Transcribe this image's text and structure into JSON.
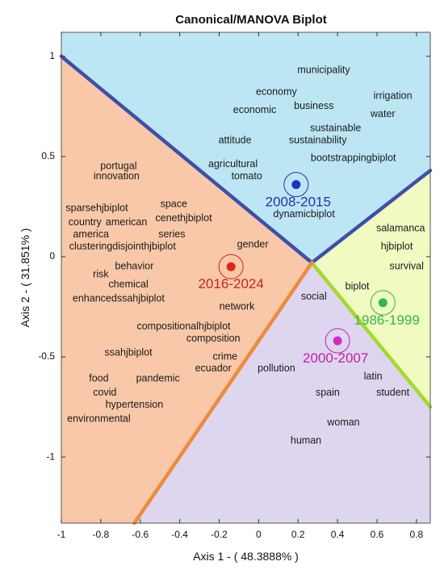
{
  "chart_data": {
    "type": "scatter",
    "title": "Canonical/MANOVA Biplot",
    "xlabel": "Axis 1 - ( 48.3888% )",
    "ylabel": "Axis 2 - ( 31.851% )",
    "xlim": [
      -1,
      0.87
    ],
    "ylim": [
      -1.33,
      1.12
    ],
    "xticks": [
      "-1",
      "-0.8",
      "-0.6",
      "-0.4",
      "-0.2",
      "0",
      "0.2",
      "0.4",
      "0.6",
      "0.8"
    ],
    "xtick_values": [
      -1,
      -0.8,
      -0.6,
      -0.4,
      -0.2,
      0,
      0.2,
      0.4,
      0.6,
      0.8
    ],
    "yticks": [
      "1",
      "0.5",
      "0",
      "-0.5",
      "-1"
    ],
    "ytick_values": [
      1,
      0.5,
      0,
      -0.5,
      -1
    ],
    "grid": false,
    "center": [
      0.27,
      -0.03
    ],
    "boundaries": [
      {
        "to": [
          -1.0,
          1.0
        ],
        "color": "#3f4fa8"
      },
      {
        "to": [
          0.87,
          0.43
        ],
        "color": "#3f4fa8"
      },
      {
        "to": [
          0.87,
          -0.75
        ],
        "color": "#a5d930"
      },
      {
        "to": [
          -0.63,
          -1.33
        ],
        "color": "#ee8a3c"
      }
    ],
    "regions": [
      {
        "name": "2008-2015",
        "color": "#bde6f4",
        "vertices": [
          [
            -1.0,
            1.12
          ],
          [
            0.87,
            1.12
          ],
          [
            0.87,
            0.43
          ],
          [
            0.27,
            -0.03
          ],
          [
            -1.0,
            1.0
          ]
        ]
      },
      {
        "name": "1986-1999",
        "color": "#f0fac1",
        "vertices": [
          [
            0.27,
            -0.03
          ],
          [
            0.87,
            0.43
          ],
          [
            0.87,
            -0.75
          ]
        ]
      },
      {
        "name": "2000-2007",
        "color": "#ddd6ee",
        "vertices": [
          [
            0.27,
            -0.03
          ],
          [
            0.87,
            -0.75
          ],
          [
            0.87,
            -1.33
          ],
          [
            -0.63,
            -1.33
          ]
        ]
      },
      {
        "name": "2016-2024",
        "color": "#f9c8a8",
        "vertices": [
          [
            -1.0,
            1.0
          ],
          [
            0.27,
            -0.03
          ],
          [
            -0.63,
            -1.33
          ],
          [
            -1.0,
            -1.33
          ]
        ]
      }
    ],
    "groups": [
      {
        "label": "2008-2015",
        "x": 0.19,
        "y": 0.36,
        "color": "#2a2fa6",
        "dot": "#2030c0",
        "label_x": 0.2,
        "label_y": 0.27
      },
      {
        "label": "2016-2024",
        "x": -0.14,
        "y": -0.05,
        "color": "#c5261d",
        "dot": "#e0231b",
        "label_x": -0.14,
        "label_y": -0.14
      },
      {
        "label": "1986-1999",
        "x": 0.63,
        "y": -0.23,
        "color": "#37b54a",
        "dot": "#2db84a",
        "label_x": 0.65,
        "label_y": -0.32
      },
      {
        "label": "2000-2007",
        "x": 0.4,
        "y": -0.42,
        "color": "#bf1fa8",
        "dot": "#d02cc4",
        "label_x": 0.39,
        "label_y": -0.51
      }
    ],
    "words": [
      {
        "text": "municipality",
        "x": 0.33,
        "y": 0.93
      },
      {
        "text": "economy",
        "x": 0.09,
        "y": 0.82
      },
      {
        "text": "irrigation",
        "x": 0.68,
        "y": 0.8
      },
      {
        "text": "business",
        "x": 0.28,
        "y": 0.75
      },
      {
        "text": "economic",
        "x": -0.02,
        "y": 0.73
      },
      {
        "text": "water",
        "x": 0.63,
        "y": 0.71
      },
      {
        "text": "sustainable",
        "x": 0.39,
        "y": 0.64
      },
      {
        "text": "attitude",
        "x": -0.12,
        "y": 0.58
      },
      {
        "text": "sustainability",
        "x": 0.3,
        "y": 0.58
      },
      {
        "text": "bootstrappingbiplot",
        "x": 0.48,
        "y": 0.49
      },
      {
        "text": "portugal",
        "x": -0.71,
        "y": 0.45
      },
      {
        "text": "agricultural",
        "x": -0.13,
        "y": 0.46
      },
      {
        "text": "innovation",
        "x": -0.72,
        "y": 0.4
      },
      {
        "text": "tomato",
        "x": -0.06,
        "y": 0.4
      },
      {
        "text": "space",
        "x": -0.43,
        "y": 0.26
      },
      {
        "text": "sparsehjbiplot",
        "x": -0.82,
        "y": 0.24
      },
      {
        "text": "dynamicbiplot",
        "x": 0.23,
        "y": 0.21
      },
      {
        "text": "cenethjbiplot",
        "x": -0.38,
        "y": 0.19
      },
      {
        "text": "country",
        "x": -0.88,
        "y": 0.17
      },
      {
        "text": "american",
        "x": -0.67,
        "y": 0.17
      },
      {
        "text": "salamanca",
        "x": 0.72,
        "y": 0.14
      },
      {
        "text": "america",
        "x": -0.85,
        "y": 0.11
      },
      {
        "text": "series",
        "x": -0.44,
        "y": 0.11
      },
      {
        "text": "hjbiplot",
        "x": 0.7,
        "y": 0.05
      },
      {
        "text": "gender",
        "x": -0.03,
        "y": 0.06
      },
      {
        "text": "clusteringdisjointhjbiplot",
        "x": -0.69,
        "y": 0.05
      },
      {
        "text": "behavior",
        "x": -0.63,
        "y": -0.05
      },
      {
        "text": "survival",
        "x": 0.75,
        "y": -0.05
      },
      {
        "text": "risk",
        "x": -0.8,
        "y": -0.09
      },
      {
        "text": "chemical",
        "x": -0.66,
        "y": -0.14
      },
      {
        "text": "biplot",
        "x": 0.5,
        "y": -0.15
      },
      {
        "text": "social",
        "x": 0.28,
        "y": -0.2
      },
      {
        "text": "enhancedssahjbiplot",
        "x": -0.71,
        "y": -0.21
      },
      {
        "text": "network",
        "x": -0.11,
        "y": -0.25
      },
      {
        "text": "compositionalhjbiplot",
        "x": -0.38,
        "y": -0.35
      },
      {
        "text": "composition",
        "x": -0.23,
        "y": -0.41
      },
      {
        "text": "ssahjbiplot",
        "x": -0.66,
        "y": -0.48
      },
      {
        "text": "crime",
        "x": -0.17,
        "y": -0.5
      },
      {
        "text": "ecuador",
        "x": -0.23,
        "y": -0.56
      },
      {
        "text": "pollution",
        "x": 0.09,
        "y": -0.56
      },
      {
        "text": "food",
        "x": -0.81,
        "y": -0.61
      },
      {
        "text": "pandemic",
        "x": -0.51,
        "y": -0.61
      },
      {
        "text": "latin",
        "x": 0.58,
        "y": -0.6
      },
      {
        "text": "covid",
        "x": -0.78,
        "y": -0.68
      },
      {
        "text": "spain",
        "x": 0.35,
        "y": -0.68
      },
      {
        "text": "student",
        "x": 0.68,
        "y": -0.68
      },
      {
        "text": "hypertension",
        "x": -0.63,
        "y": -0.74
      },
      {
        "text": "environmental",
        "x": -0.81,
        "y": -0.81
      },
      {
        "text": "woman",
        "x": 0.43,
        "y": -0.83
      },
      {
        "text": "human",
        "x": 0.24,
        "y": -0.92
      }
    ]
  }
}
